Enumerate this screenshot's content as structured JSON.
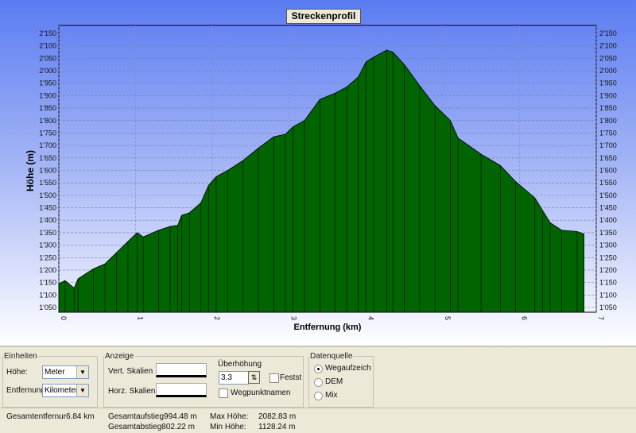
{
  "chart_data": {
    "type": "area",
    "title": "Streckenprofil",
    "xlabel": "Entfernung (km)",
    "ylabel": "Höhe (m)",
    "xlim": [
      0,
      7
    ],
    "ylim": [
      1050,
      2150
    ],
    "x_ticks": [
      "0",
      "1",
      "2",
      "3",
      "4",
      "5",
      "6",
      "7"
    ],
    "y_ticks": [
      "1'050",
      "1'100",
      "1'150",
      "1'200",
      "1'250",
      "1'300",
      "1'350",
      "1'400",
      "1'450",
      "1'500",
      "1'550",
      "1'600",
      "1'650",
      "1'700",
      "1'750",
      "1'800",
      "1'850",
      "1'900",
      "1'950",
      "2'000",
      "2'050",
      "2'100",
      "2'150"
    ],
    "grid": true,
    "fill_color": "#006400",
    "x": [
      0,
      0.08,
      0.2,
      0.25,
      0.45,
      0.6,
      0.75,
      0.9,
      1.02,
      1.1,
      1.3,
      1.45,
      1.55,
      1.6,
      1.7,
      1.85,
      1.95,
      2.05,
      2.2,
      2.4,
      2.6,
      2.8,
      2.95,
      3.05,
      3.2,
      3.4,
      3.6,
      3.75,
      3.9,
      4.0,
      4.1,
      4.27,
      4.35,
      4.5,
      4.7,
      4.9,
      5.1,
      5.2,
      5.5,
      5.75,
      5.95,
      6.2,
      6.3,
      6.4,
      6.55,
      6.75,
      6.84
    ],
    "y": [
      1145,
      1158,
      1128,
      1165,
      1205,
      1225,
      1270,
      1315,
      1350,
      1333,
      1360,
      1375,
      1380,
      1420,
      1430,
      1470,
      1540,
      1575,
      1600,
      1640,
      1690,
      1735,
      1745,
      1775,
      1800,
      1885,
      1910,
      1935,
      1975,
      2035,
      2055,
      2083,
      2075,
      2025,
      1940,
      1860,
      1800,
      1730,
      1665,
      1620,
      1555,
      1490,
      1440,
      1390,
      1360,
      1355,
      1345
    ]
  },
  "units": {
    "legend": "Einheiten",
    "height_label": "Höhe:",
    "height_value": "Meter",
    "distance_label": "Entfernung:",
    "distance_value": "Kilometer"
  },
  "display": {
    "legend": "Anzeige",
    "vert_label": "Vert. Skalien",
    "horz_label": "Horz. Skalien",
    "exaggeration_label": "Überhöhung",
    "exaggeration_value": "3.3",
    "fixed_label": "Festst",
    "waypoint_label": "Wegpunktnamen"
  },
  "source": {
    "legend": "Datenquelle",
    "options": [
      "Wegaufzeichnu",
      "DEM",
      "Mix"
    ],
    "selected": 0
  },
  "stats": {
    "total_distance": "Gesamtentfernur6.84 km",
    "ascent": "Gesamtaufstieg994.48 m",
    "descent": "Gesamtabstieg802.22 m",
    "max_label": "Max Höhe:",
    "max_value": "2082.83 m",
    "min_label": "Min Höhe:",
    "min_value": "1128.24 m"
  }
}
